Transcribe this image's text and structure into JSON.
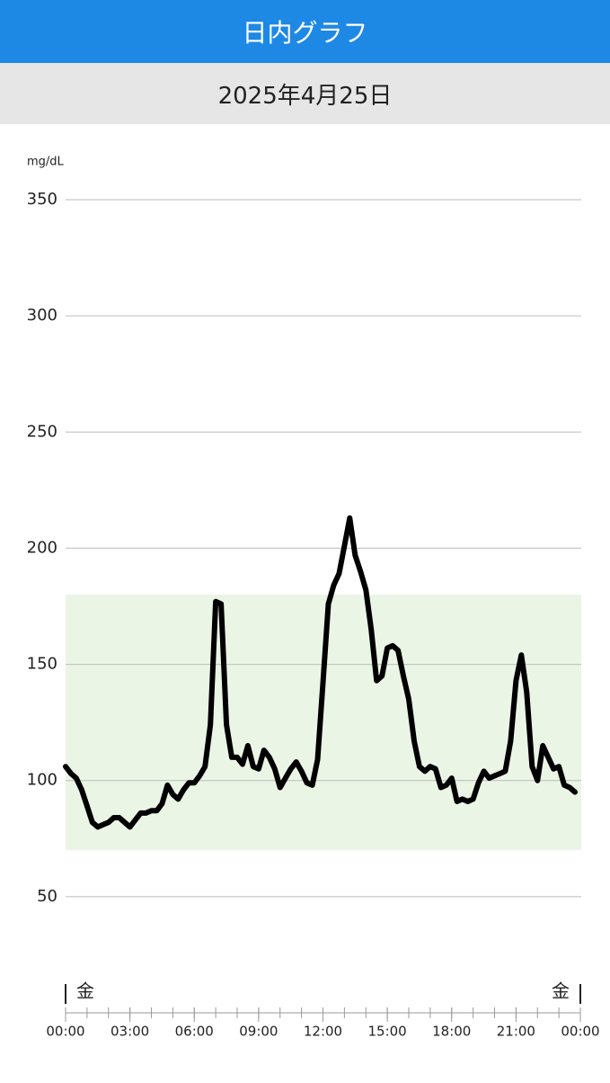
{
  "header": {
    "title": "日内グラフ",
    "date": "2025年4月25日"
  },
  "chart_data": {
    "type": "line",
    "y_label": "mg/dL",
    "color": "#000000",
    "x": [
      0,
      0.25,
      0.5,
      0.75,
      1,
      1.25,
      1.5,
      1.75,
      2,
      2.25,
      2.5,
      2.75,
      3,
      3.25,
      3.5,
      3.75,
      4,
      4.25,
      4.5,
      4.75,
      5,
      5.25,
      5.5,
      5.75,
      6,
      6.25,
      6.5,
      6.75,
      7,
      7.25,
      7.5,
      7.75,
      8,
      8.25,
      8.5,
      8.75,
      9,
      9.25,
      9.5,
      9.75,
      10,
      10.25,
      10.5,
      10.75,
      11,
      11.25,
      11.5,
      11.75,
      12,
      12.25,
      12.5,
      12.75,
      13,
      13.25,
      13.5,
      13.75,
      14,
      14.25,
      14.5,
      14.75,
      15,
      15.25,
      15.5,
      15.75,
      16,
      16.25,
      16.5,
      16.75,
      17,
      17.25,
      17.5,
      17.75,
      18,
      18.25,
      18.5,
      18.75,
      19,
      19.25,
      19.5,
      19.75,
      20,
      20.25,
      20.5,
      20.75,
      21,
      21.25,
      21.5,
      21.75,
      22,
      22.25,
      22.5,
      22.75,
      23,
      23.25,
      23.5,
      23.75
    ],
    "values": [
      106,
      103,
      101,
      96,
      89,
      82,
      80,
      81,
      82,
      84,
      84,
      82,
      80,
      83,
      86,
      86,
      87,
      87,
      90,
      98,
      94,
      92,
      96,
      99,
      99,
      102,
      106,
      124,
      177,
      176,
      124,
      110,
      110,
      107,
      115,
      106,
      105,
      113,
      110,
      105,
      97,
      101,
      105,
      108,
      104,
      99,
      98,
      109,
      142,
      176,
      184,
      189,
      201,
      213,
      197,
      190,
      182,
      165,
      143,
      145,
      157,
      158,
      156,
      145,
      135,
      117,
      106,
      104,
      106,
      105,
      97,
      98,
      101,
      91,
      92,
      91,
      92,
      99,
      104,
      101,
      102,
      103,
      104,
      117,
      143,
      154,
      138,
      106,
      100,
      115,
      110,
      105,
      106,
      98,
      97,
      95
    ],
    "xlim": [
      0,
      24
    ],
    "xticks": [
      {
        "value": 0,
        "label": "00:00"
      },
      {
        "value": 3,
        "label": "03:00"
      },
      {
        "value": 6,
        "label": "06:00"
      },
      {
        "value": 9,
        "label": "09:00"
      },
      {
        "value": 12,
        "label": "12:00"
      },
      {
        "value": 15,
        "label": "15:00"
      },
      {
        "value": 18,
        "label": "18:00"
      },
      {
        "value": 21,
        "label": "21:00"
      },
      {
        "value": 24,
        "label": "00:00"
      }
    ],
    "xminorticks": [
      0,
      1,
      2,
      3,
      4,
      5,
      6,
      7,
      8,
      9,
      10,
      11,
      12,
      13,
      14,
      15,
      16,
      17,
      18,
      19,
      20,
      21,
      22,
      23,
      24
    ],
    "ylim": [
      0,
      350
    ],
    "yticks": [
      50,
      100,
      150,
      200,
      250,
      300,
      350
    ],
    "grid": true,
    "target_range": [
      70,
      180
    ],
    "target_color": "#ebf5e6",
    "day_labels": [
      "金",
      "金"
    ]
  }
}
